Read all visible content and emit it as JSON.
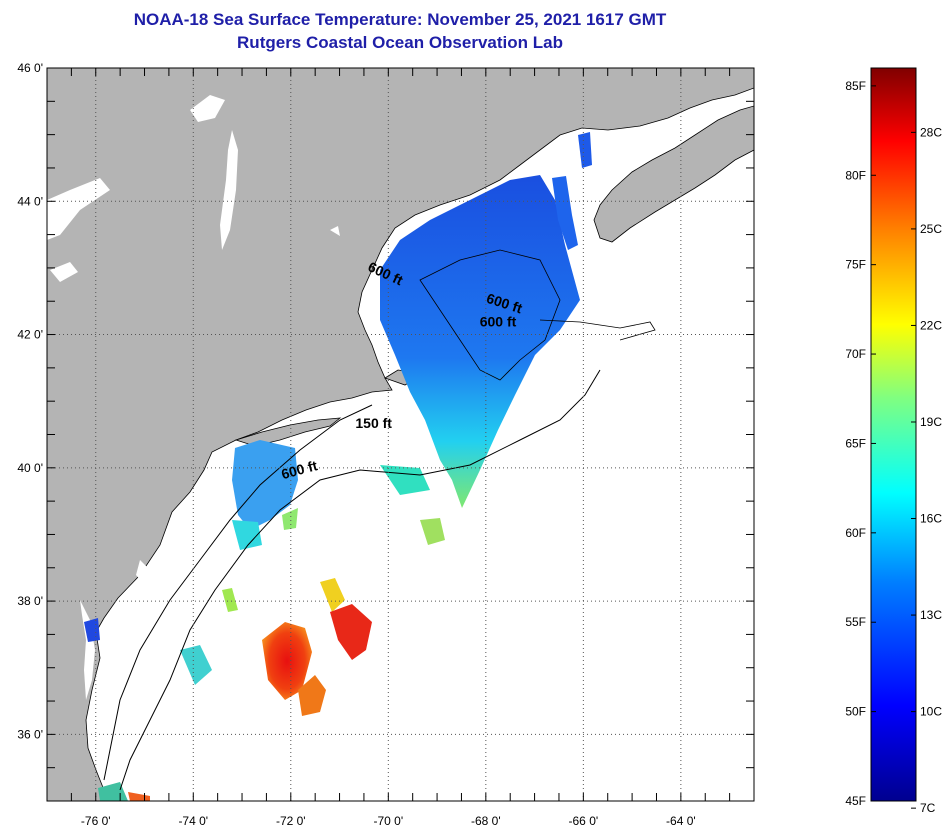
{
  "title_line1": "NOAA-18 Sea Surface Temperature:  November 25, 2021 1617 GMT",
  "title_line2": "Rutgers Coastal Ocean Observation Lab",
  "colors": {
    "land": "#b4b4b4",
    "ocean": "#ffffff",
    "title": "#1f1fa8"
  },
  "map": {
    "lon_range": [
      -77.0,
      -62.5
    ],
    "lat_range": [
      35.0,
      46.0
    ],
    "lon_ticks": [
      {
        "value": -76,
        "label": "-76 0'"
      },
      {
        "value": -74,
        "label": "-74 0'"
      },
      {
        "value": -72,
        "label": "-72 0'"
      },
      {
        "value": -70,
        "label": "-70 0'"
      },
      {
        "value": -68,
        "label": "-68 0'"
      },
      {
        "value": -66,
        "label": "-66 0'"
      },
      {
        "value": -64,
        "label": "-64 0'"
      }
    ],
    "lat_ticks": [
      {
        "value": 46,
        "label": "46 0'"
      },
      {
        "value": 44,
        "label": "44 0'"
      },
      {
        "value": 42,
        "label": "42 0'"
      },
      {
        "value": 40,
        "label": "40 0'"
      },
      {
        "value": 38,
        "label": "38 0'"
      },
      {
        "value": 36,
        "label": "36 0'"
      }
    ],
    "contour_labels": [
      {
        "text": "600 ft",
        "lon": -70.1,
        "lat": 42.85
      },
      {
        "text": "600 ft",
        "lon": -67.65,
        "lat": 42.4
      },
      {
        "text": "600 ft",
        "lon": -67.75,
        "lat": 42.12
      },
      {
        "text": "150 ft",
        "lon": -70.3,
        "lat": 40.6
      },
      {
        "text": "600 ft",
        "lon": -71.8,
        "lat": 39.9
      }
    ]
  },
  "colorbar": {
    "min_f": 45,
    "max_f": 86,
    "fahrenheit_labels": [
      {
        "value": 85,
        "label": "85F"
      },
      {
        "value": 80,
        "label": "80F"
      },
      {
        "value": 75,
        "label": "75F"
      },
      {
        "value": 70,
        "label": "70F"
      },
      {
        "value": 65,
        "label": "65F"
      },
      {
        "value": 60,
        "label": "60F"
      },
      {
        "value": 55,
        "label": "55F"
      },
      {
        "value": 50,
        "label": "50F"
      },
      {
        "value": 45,
        "label": "45F"
      }
    ],
    "celsius_labels": [
      {
        "value": 28,
        "label": "28C"
      },
      {
        "value": 25,
        "label": "25C"
      },
      {
        "value": 22,
        "label": "22C"
      },
      {
        "value": 19,
        "label": "19C"
      },
      {
        "value": 16,
        "label": "16C"
      },
      {
        "value": 13,
        "label": "13C"
      },
      {
        "value": 10,
        "label": "10C"
      },
      {
        "value": 7,
        "label": "7C"
      }
    ]
  }
}
